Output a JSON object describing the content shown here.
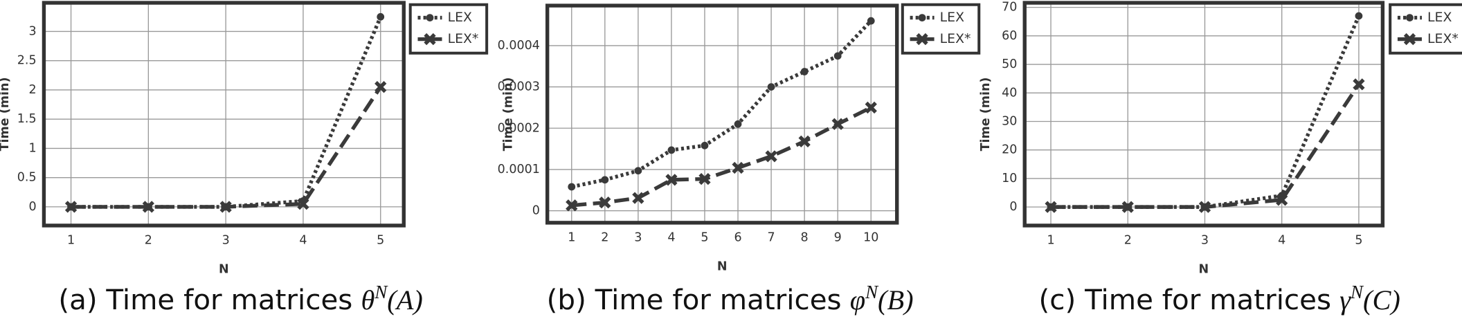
{
  "chart_data": [
    {
      "type": "line",
      "caption": {
        "text": "(a) Time for matrices",
        "symbol": "θ",
        "superscript": "N",
        "argument": "(A)"
      },
      "xlabel": "N",
      "ylabel": "Time (min)",
      "x": [
        1,
        2,
        3,
        4,
        5
      ],
      "series": [
        {
          "name": "LEX",
          "color": "#3a3a3a",
          "line_style": "dotted",
          "marker": "circle",
          "values": [
            0,
            0,
            0,
            0.1,
            3.25
          ]
        },
        {
          "name": "LEX*",
          "color": "#3a3a3a",
          "line_style": "dashed",
          "marker": "x",
          "values": [
            0,
            0,
            0,
            0.05,
            2.05
          ]
        }
      ],
      "xlim": [
        0.65,
        5.3
      ],
      "ylim": [
        -0.32,
        3.49
      ],
      "xticks": [
        1,
        2,
        3,
        4,
        5
      ],
      "yticks": [
        0,
        0.5,
        1,
        1.5,
        2,
        2.5,
        3
      ],
      "grid": true,
      "legend": "outside-top-right"
    },
    {
      "type": "line",
      "caption": {
        "text": "(b) Time for matrices",
        "symbol": "φ",
        "superscript": "N",
        "argument": "(B)"
      },
      "xlabel": "N",
      "ylabel": "Time (min)",
      "x": [
        1,
        2,
        3,
        4,
        5,
        6,
        7,
        8,
        9,
        10
      ],
      "series": [
        {
          "name": "LEX",
          "color": "#3a3a3a",
          "line_style": "dotted",
          "marker": "circle",
          "values": [
            5.8e-05,
            7.5e-05,
            9.7e-05,
            0.000147,
            0.000158,
            0.00021,
            0.0003,
            0.000337,
            0.000375,
            0.00046
          ]
        },
        {
          "name": "LEX*",
          "color": "#3a3a3a",
          "line_style": "dashed",
          "marker": "x",
          "values": [
            1.3e-05,
            2e-05,
            3.1e-05,
            7.5e-05,
            7.7e-05,
            0.000104,
            0.000132,
            0.000168,
            0.00021,
            0.00025
          ]
        }
      ],
      "xlim": [
        0.27,
        10.78
      ],
      "ylim": [
        -2.9e-05,
        0.000497
      ],
      "xticks": [
        1,
        2,
        3,
        4,
        5,
        6,
        7,
        8,
        9,
        10
      ],
      "yticks": [
        0,
        0.0001,
        0.0002,
        0.0003,
        0.0004
      ],
      "grid": true,
      "legend": "outside-top-right"
    },
    {
      "type": "line",
      "caption": {
        "text": "(c) Time for matrices",
        "symbol": "γ",
        "superscript": "N",
        "argument": "(C)"
      },
      "xlabel": "N",
      "ylabel": "Time (min)",
      "x": [
        1,
        2,
        3,
        4,
        5
      ],
      "series": [
        {
          "name": "LEX",
          "color": "#3a3a3a",
          "line_style": "dotted",
          "marker": "circle",
          "values": [
            0,
            0,
            0,
            4,
            67
          ]
        },
        {
          "name": "LEX*",
          "color": "#3a3a3a",
          "line_style": "dashed",
          "marker": "x",
          "values": [
            0,
            0,
            0,
            2.5,
            43
          ]
        }
      ],
      "xlim": [
        0.66,
        5.31
      ],
      "ylim": [
        -6.5,
        71.6
      ],
      "xticks": [
        1,
        2,
        3,
        4,
        5
      ],
      "yticks": [
        0,
        10,
        20,
        30,
        40,
        50,
        60,
        70
      ],
      "grid": true,
      "legend": "outside-top-right"
    }
  ]
}
